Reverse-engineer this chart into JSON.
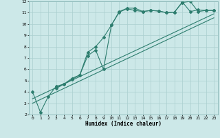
{
  "xlabel": "Humidex (Indice chaleur)",
  "bg_color": "#cce8e8",
  "line_color": "#2d7d6e",
  "grid_color": "#aacfcf",
  "xlim": [
    -0.5,
    23.5
  ],
  "ylim": [
    2,
    12
  ],
  "xticks": [
    0,
    1,
    2,
    3,
    4,
    5,
    6,
    7,
    8,
    9,
    10,
    11,
    12,
    13,
    14,
    15,
    16,
    17,
    18,
    19,
    20,
    21,
    22,
    23
  ],
  "yticks": [
    2,
    3,
    4,
    5,
    6,
    7,
    8,
    9,
    10,
    11,
    12
  ],
  "line1_x": [
    0,
    1,
    2,
    3,
    4,
    5,
    6,
    7,
    8,
    9,
    10,
    11,
    12,
    13,
    14,
    15,
    16,
    17,
    18,
    19,
    20,
    21,
    22,
    23
  ],
  "line1_y": [
    4.0,
    2.2,
    3.6,
    4.5,
    4.7,
    5.1,
    5.5,
    7.5,
    8.0,
    8.8,
    9.9,
    11.1,
    11.4,
    11.4,
    11.1,
    11.2,
    11.15,
    11.0,
    11.05,
    11.95,
    11.1,
    11.25,
    11.2,
    11.2
  ],
  "line2_x": [
    3,
    4,
    5,
    6,
    7,
    8,
    9,
    10,
    11,
    12,
    13,
    14,
    15,
    16,
    17,
    18,
    19,
    20,
    21,
    22,
    23
  ],
  "line2_y": [
    4.3,
    4.7,
    5.2,
    5.5,
    7.2,
    7.7,
    6.0,
    9.9,
    11.05,
    11.35,
    11.2,
    11.1,
    11.2,
    11.15,
    11.0,
    11.05,
    11.9,
    12.0,
    11.1,
    11.2,
    11.2
  ],
  "line3_x": [
    0,
    23
  ],
  "line3_y": [
    3.4,
    10.9
  ],
  "line4_x": [
    0,
    23
  ],
  "line4_y": [
    3.0,
    10.55
  ]
}
